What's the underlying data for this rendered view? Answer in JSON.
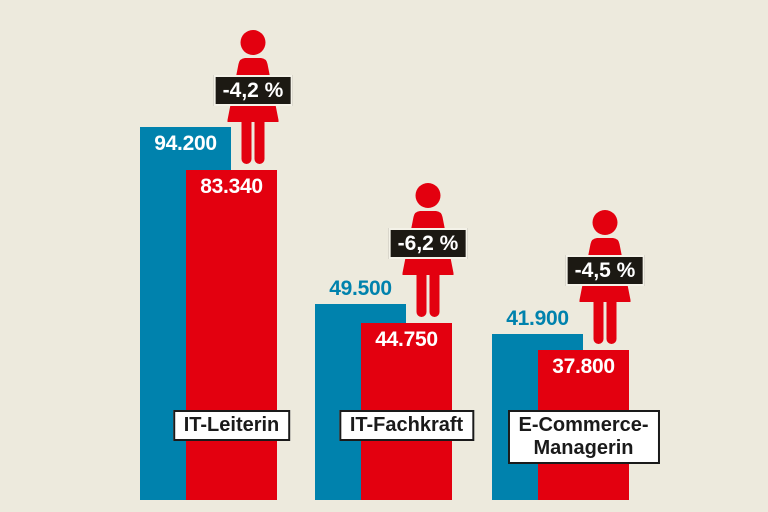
{
  "colors": {
    "background": "#edeadd",
    "blue": "#0082ad",
    "red": "#e3000f",
    "badge_bg": "#1c1913",
    "badge_text": "#ffffff",
    "badge_border": "#f4f2e8",
    "box_bg": "#ffffff",
    "box_border": "#1a1a1a",
    "box_text": "#1a1a1a",
    "value_white": "#ffffff"
  },
  "chart_data": {
    "type": "bar",
    "categories": [
      "IT-Leiterin",
      "IT-Fachkraft",
      "E-Commerce-Managerin"
    ],
    "series": [
      {
        "name": "blue",
        "color": "#0082ad",
        "values": [
          94200,
          49500,
          41900
        ]
      },
      {
        "name": "red (marked with woman pictogram)",
        "color": "#e3000f",
        "values": [
          83340,
          44750,
          37800
        ]
      }
    ],
    "annotations": [
      "-4,2 %",
      "-6,2 %",
      "-4,5 %"
    ],
    "axis": "none",
    "ylim": [
      0,
      94200
    ],
    "value_labels": "on bars, thousands separated by periods",
    "groups": [
      {
        "category_lines": [
          "IT-Leiterin"
        ],
        "blue_value": 94200,
        "blue_label": "94.200",
        "red_value": 83340,
        "red_label": "83.340",
        "delta_label": "-4,2 %",
        "pictogram": "woman-icon"
      },
      {
        "category_lines": [
          "IT-Fachkraft"
        ],
        "blue_value": 49500,
        "blue_label": "49.500",
        "red_value": 44750,
        "red_label": "44.750",
        "delta_label": "-6,2 %",
        "pictogram": "woman-icon"
      },
      {
        "category_lines": [
          "E-Commerce-",
          "Managerin"
        ],
        "blue_value": 41900,
        "blue_label": "41.900",
        "red_value": 37800,
        "red_label": "37.800",
        "delta_label": "-4,5 %",
        "pictogram": "woman-icon"
      }
    ]
  }
}
